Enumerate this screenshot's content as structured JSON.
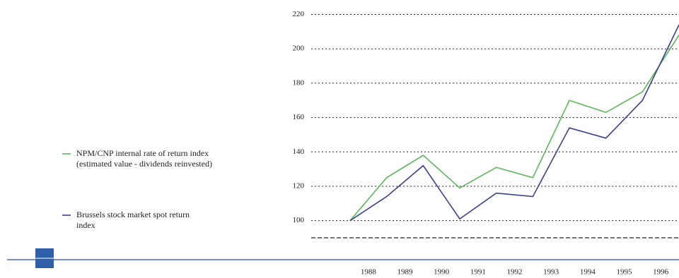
{
  "chart_data": {
    "type": "line",
    "x": [
      1987.5,
      1988.5,
      1989.5,
      1990.5,
      1991.5,
      1992.5,
      1993.5,
      1994.5,
      1995.5,
      1996.5
    ],
    "series": [
      {
        "name": "NPM/CNP internal rate of return index (estimated value - dividends reinvested)",
        "color": "#5cb85c",
        "values": [
          100,
          125,
          138,
          119,
          131,
          125,
          170,
          163,
          175,
          208
        ]
      },
      {
        "name": "Brussels stock market spot return index",
        "color": "#3a3f8f",
        "values": [
          100,
          114,
          132,
          101,
          116,
          114,
          154,
          148,
          170,
          214
        ]
      }
    ],
    "xlim": [
      1987.5,
      1996.5
    ],
    "xticks": [
      1988,
      1989,
      1990,
      1991,
      1992,
      1993,
      1994,
      1995,
      1996
    ],
    "ylim": [
      90,
      220
    ],
    "yticks": [
      100,
      120,
      140,
      160,
      180,
      200,
      220
    ],
    "grid": true
  }
}
